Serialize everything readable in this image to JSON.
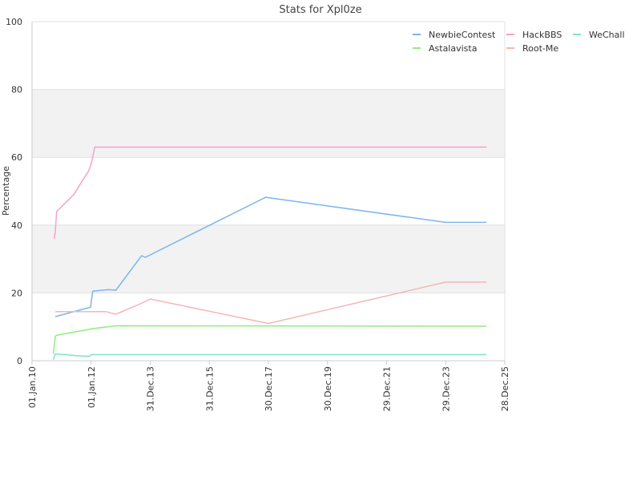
{
  "chart_data": {
    "type": "line",
    "title": "Stats for Xpl0ze",
    "xlabel": "",
    "ylabel": "Percentage",
    "ylim": [
      0,
      100
    ],
    "xlim": [
      "2010-01-01",
      "2025-12-28"
    ],
    "y_ticks": [
      "0",
      "20",
      "40",
      "60",
      "80",
      "100"
    ],
    "x_ticks": [
      {
        "date": "2010-01-01",
        "label": "01.Jan.10"
      },
      {
        "date": "2012-01-01",
        "label": "01.Jan.12"
      },
      {
        "date": "2013-12-31",
        "label": "31.Dec.13"
      },
      {
        "date": "2015-12-31",
        "label": "31.Dec.15"
      },
      {
        "date": "2017-12-30",
        "label": "30.Dec.17"
      },
      {
        "date": "2019-12-30",
        "label": "30.Dec.19"
      },
      {
        "date": "2021-12-29",
        "label": "29.Dec.21"
      },
      {
        "date": "2023-12-29",
        "label": "29.Dec.23"
      },
      {
        "date": "2025-12-28",
        "label": "28.Dec.25"
      }
    ],
    "grid": "horizontal bands",
    "legend_position": "top-right",
    "series": [
      {
        "name": "NewbieContest",
        "color": "#7cb5ec",
        "points": [
          [
            "2010-10-15",
            13.0
          ],
          [
            "2011-11-10",
            15.5
          ],
          [
            "2011-12-25",
            15.8
          ],
          [
            "2012-01-20",
            20.5
          ],
          [
            "2012-08-01",
            21.0
          ],
          [
            "2012-11-01",
            20.8
          ],
          [
            "2013-09-15",
            31.0
          ],
          [
            "2013-11-01",
            30.5
          ],
          [
            "2017-11-25",
            48.2
          ],
          [
            "2023-12-29",
            40.8
          ],
          [
            "2025-05-15",
            40.8
          ]
        ]
      },
      {
        "name": "HackBBS",
        "color": "#f7a1c9",
        "points": [
          [
            "2010-10-01",
            36.0
          ],
          [
            "2010-10-15",
            38.0
          ],
          [
            "2010-11-01",
            44.0
          ],
          [
            "2011-06-01",
            49.0
          ],
          [
            "2011-12-01",
            56.0
          ],
          [
            "2012-01-01",
            58.0
          ],
          [
            "2012-02-15",
            63.0
          ],
          [
            "2025-05-15",
            63.0
          ]
        ]
      },
      {
        "name": "WeChall",
        "color": "#7fe3c8",
        "points": [
          [
            "2010-09-20",
            0.3
          ],
          [
            "2010-10-15",
            2.0
          ],
          [
            "2011-03-01",
            1.8
          ],
          [
            "2011-07-01",
            1.5
          ],
          [
            "2011-12-10",
            1.3
          ],
          [
            "2012-01-01",
            1.8
          ],
          [
            "2025-05-15",
            1.8
          ]
        ]
      },
      {
        "name": "Astalavista",
        "color": "#90ed7d",
        "points": [
          [
            "2010-09-20",
            2.0
          ],
          [
            "2010-10-15",
            7.2
          ],
          [
            "2010-11-01",
            7.5
          ],
          [
            "2012-02-01",
            9.5
          ],
          [
            "2012-11-01",
            10.3
          ],
          [
            "2025-05-15",
            10.2
          ]
        ]
      },
      {
        "name": "Root-Me",
        "color": "#f4b7b7",
        "points": [
          [
            "2010-10-15",
            14.5
          ],
          [
            "2012-02-01",
            14.5
          ],
          [
            "2012-07-01",
            14.5
          ],
          [
            "2012-11-01",
            13.7
          ],
          [
            "2013-09-01",
            16.8
          ],
          [
            "2014-01-01",
            18.2
          ],
          [
            "2017-12-30",
            11.0
          ],
          [
            "2023-12-29",
            23.2
          ],
          [
            "2025-05-15",
            23.2
          ]
        ]
      }
    ],
    "legend_order": [
      "NewbieContest",
      "HackBBS",
      "WeChall",
      "Astalavista",
      "Root-Me"
    ]
  }
}
